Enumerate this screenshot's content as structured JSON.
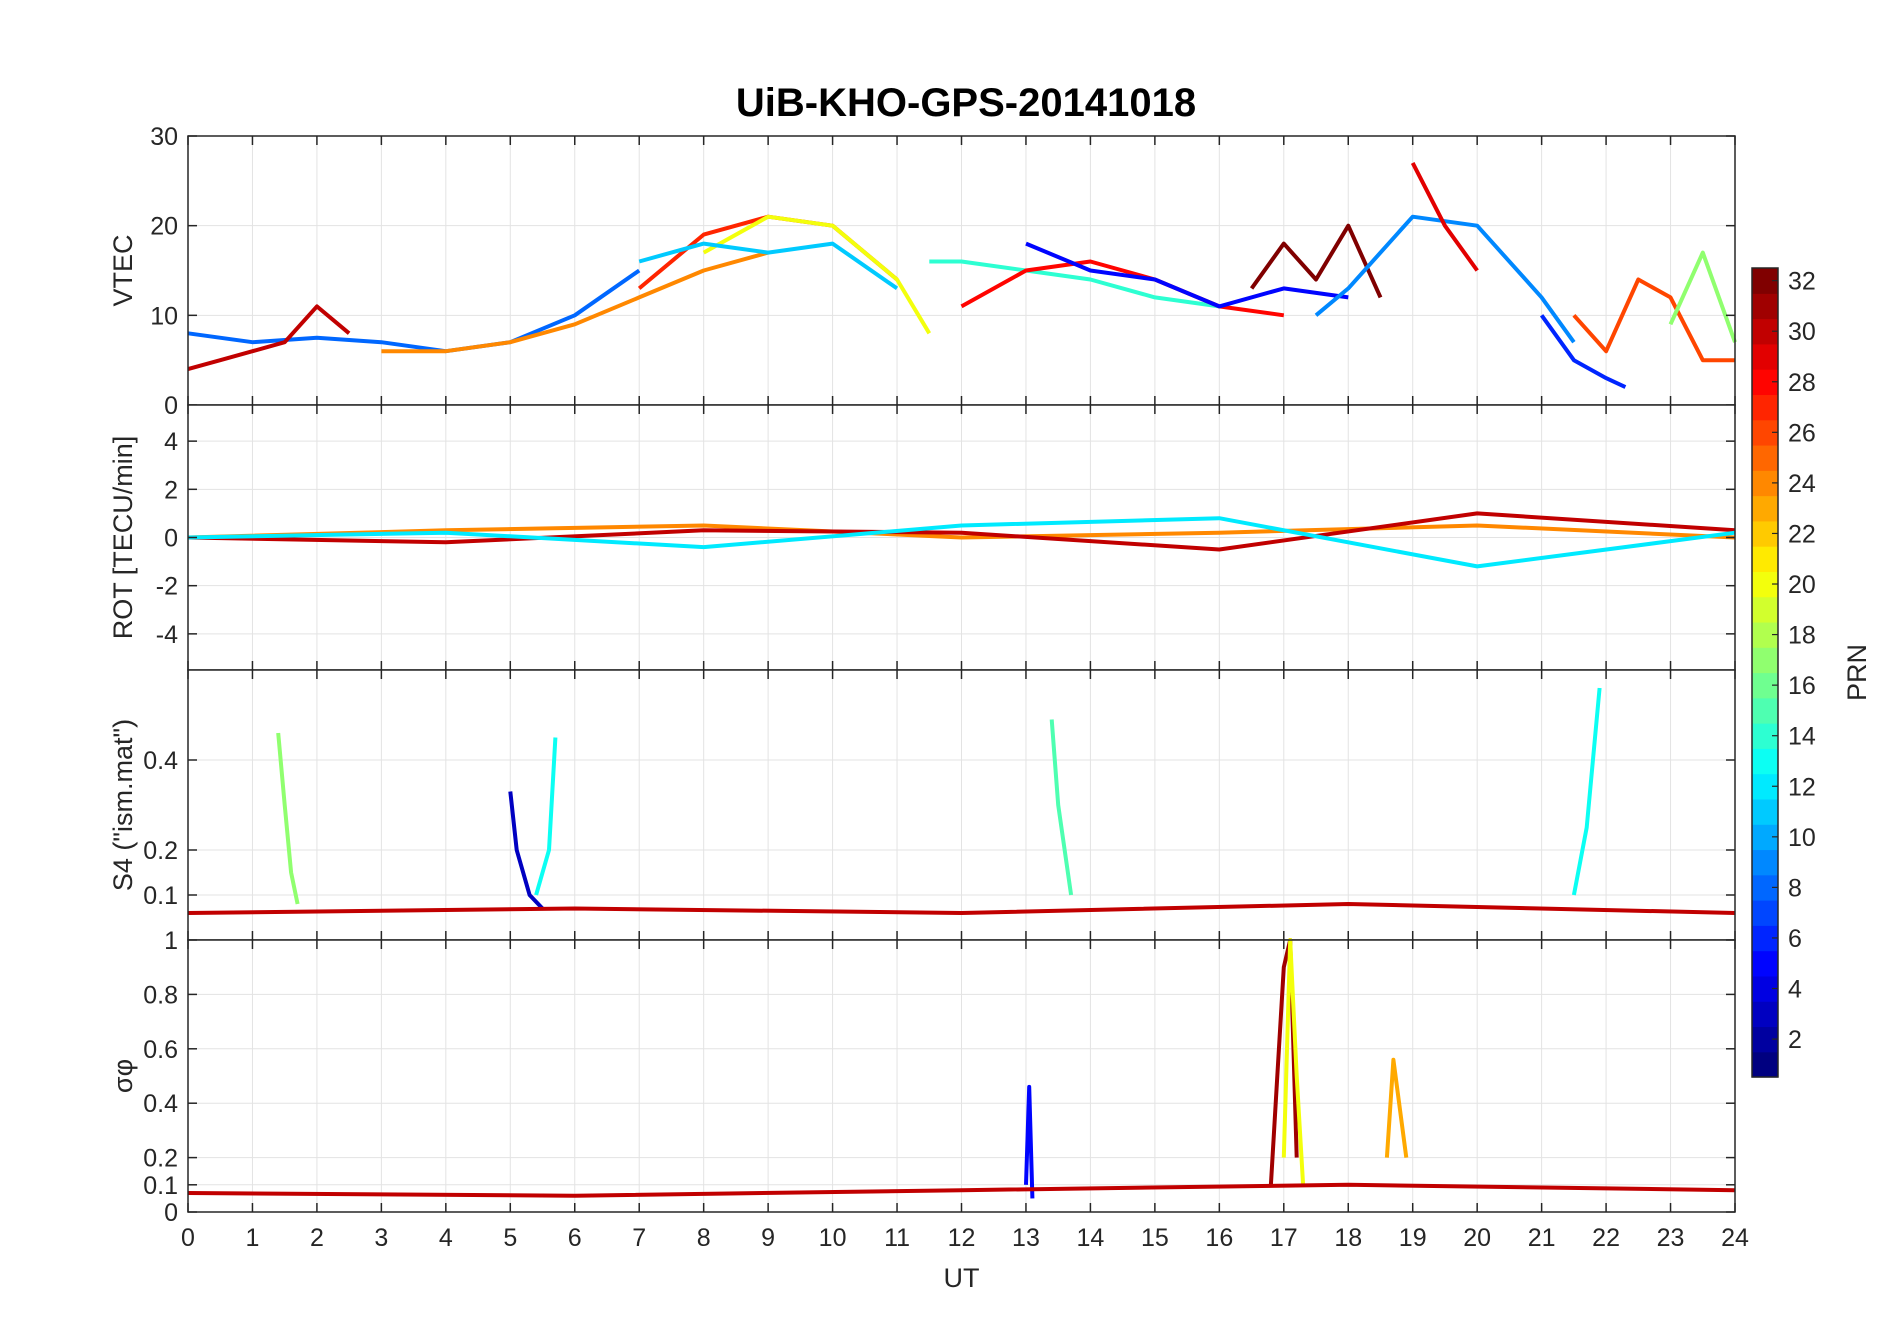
{
  "title": "UiB-KHO-GPS-20141018",
  "chart_data": [
    {
      "type": "line",
      "panel": "vtec",
      "ylabel": "VTEC",
      "ylim": [
        0,
        30
      ],
      "yticks": [
        0,
        10,
        20,
        30
      ],
      "xlim": [
        0,
        24
      ],
      "grid": true,
      "series": [
        {
          "prn": 8,
          "x": [
            0,
            1,
            2,
            3,
            4,
            5,
            6,
            7
          ],
          "values": [
            8,
            7,
            7.5,
            7,
            6,
            7,
            10,
            15
          ]
        },
        {
          "prn": 30,
          "x": [
            0,
            0.5,
            1,
            1.5,
            2,
            2.5
          ],
          "values": [
            4,
            5,
            6,
            7,
            11,
            8
          ]
        },
        {
          "prn": 24,
          "x": [
            3,
            4,
            5,
            6,
            7,
            8,
            9
          ],
          "values": [
            6,
            6,
            7,
            9,
            12,
            15,
            17
          ]
        },
        {
          "prn": 27,
          "x": [
            7,
            8,
            9,
            10,
            11
          ],
          "values": [
            13,
            19,
            21,
            20,
            14
          ]
        },
        {
          "prn": 20,
          "x": [
            8,
            9,
            10,
            11,
            11.5
          ],
          "values": [
            17,
            21,
            20,
            14,
            8
          ]
        },
        {
          "prn": 11,
          "x": [
            7,
            8,
            9,
            10,
            11
          ],
          "values": [
            16,
            18,
            17,
            18,
            13
          ]
        },
        {
          "prn": 14,
          "x": [
            11.5,
            12,
            13,
            14,
            15,
            16
          ],
          "values": [
            16,
            16,
            15,
            14,
            12,
            11
          ]
        },
        {
          "prn": 28,
          "x": [
            12,
            13,
            14,
            15,
            16,
            17
          ],
          "values": [
            11,
            15,
            16,
            14,
            11,
            10
          ]
        },
        {
          "prn": 5,
          "x": [
            13,
            14,
            15,
            16,
            17,
            18
          ],
          "values": [
            18,
            15,
            14,
            11,
            13,
            12
          ]
        },
        {
          "prn": 32,
          "x": [
            16.5,
            17,
            17.5,
            18,
            18.5
          ],
          "values": [
            13,
            18,
            14,
            20,
            12
          ]
        },
        {
          "prn": 9,
          "x": [
            17.5,
            18,
            19,
            20,
            21,
            21.5
          ],
          "values": [
            10,
            13,
            21,
            20,
            12,
            7
          ]
        },
        {
          "prn": 29,
          "x": [
            19,
            19.5,
            20
          ],
          "values": [
            27,
            20,
            15
          ]
        },
        {
          "prn": 6,
          "x": [
            21,
            21.5,
            22,
            22.3
          ],
          "values": [
            10,
            5,
            3,
            2
          ]
        },
        {
          "prn": 26,
          "x": [
            21.5,
            22,
            22.5,
            23,
            23.5,
            24
          ],
          "values": [
            10,
            6,
            14,
            12,
            5,
            5
          ]
        },
        {
          "prn": 17,
          "x": [
            23,
            23.5,
            24
          ],
          "values": [
            9,
            17,
            7
          ]
        }
      ]
    },
    {
      "type": "line",
      "panel": "rot",
      "ylabel": "ROT [TECU/min]",
      "ylim": [
        -5.5,
        5.5
      ],
      "yticks": [
        -4,
        -2,
        0,
        2,
        4
      ],
      "xlim": [
        0,
        24
      ],
      "grid": true,
      "series": [
        {
          "prn": 24,
          "x": [
            0,
            4,
            8,
            12,
            16,
            20,
            24
          ],
          "values": [
            0,
            0.3,
            0.5,
            0,
            0.2,
            0.5,
            0
          ]
        },
        {
          "prn": 30,
          "x": [
            0,
            4,
            8,
            12,
            16,
            20,
            24
          ],
          "values": [
            0,
            -0.2,
            0.3,
            0.2,
            -0.5,
            1,
            0.3
          ]
        },
        {
          "prn": 12,
          "x": [
            0,
            4,
            8,
            12,
            16,
            20,
            24
          ],
          "values": [
            0,
            0.2,
            -0.4,
            0.5,
            0.8,
            -1.2,
            0.2
          ]
        }
      ]
    },
    {
      "type": "line",
      "panel": "s4",
      "ylabel": "S4 (\"ism.mat\")",
      "ylim": [
        0,
        0.6
      ],
      "yticks": [
        0.1,
        0.2,
        0.4
      ],
      "xlim": [
        0,
        24
      ],
      "grid": true,
      "series": [
        {
          "prn": 17,
          "x": [
            1.4,
            1.5,
            1.6,
            1.7
          ],
          "values": [
            0.46,
            0.3,
            0.15,
            0.08
          ]
        },
        {
          "prn": 3,
          "x": [
            5.0,
            5.1,
            5.3,
            5.5
          ],
          "values": [
            0.33,
            0.2,
            0.1,
            0.07
          ]
        },
        {
          "prn": 13,
          "x": [
            5.4,
            5.6,
            5.7
          ],
          "values": [
            0.1,
            0.2,
            0.45
          ]
        },
        {
          "prn": 15,
          "x": [
            13.4,
            13.5,
            13.7
          ],
          "values": [
            0.49,
            0.3,
            0.1
          ]
        },
        {
          "prn": 13,
          "x": [
            21.5,
            21.7,
            21.9
          ],
          "values": [
            0.1,
            0.25,
            0.56
          ]
        },
        {
          "prn": 30,
          "x": [
            0,
            6,
            12,
            18,
            24
          ],
          "values": [
            0.06,
            0.07,
            0.06,
            0.08,
            0.06
          ]
        }
      ]
    },
    {
      "type": "line",
      "panel": "sigma_phi",
      "ylabel": "σφ",
      "ylim": [
        0,
        1
      ],
      "yticks": [
        0,
        0.1,
        0.2,
        0.4,
        0.6,
        0.8,
        1
      ],
      "xlim": [
        0,
        24
      ],
      "xticks": [
        0,
        1,
        2,
        3,
        4,
        5,
        6,
        7,
        8,
        9,
        10,
        11,
        12,
        13,
        14,
        15,
        16,
        17,
        18,
        19,
        20,
        21,
        22,
        23,
        24
      ],
      "xlabel": "UT",
      "grid": true,
      "series": [
        {
          "prn": 31,
          "x": [
            16.8,
            16.9,
            17.0,
            17.1,
            17.2
          ],
          "values": [
            0.1,
            0.5,
            0.9,
            1.0,
            0.2
          ]
        },
        {
          "prn": 20,
          "x": [
            17.0,
            17.1,
            17.2,
            17.3
          ],
          "values": [
            0.2,
            1.0,
            0.5,
            0.1
          ]
        },
        {
          "prn": 5,
          "x": [
            13.0,
            13.05,
            13.1
          ],
          "values": [
            0.1,
            0.46,
            0.05
          ]
        },
        {
          "prn": 23,
          "x": [
            18.6,
            18.7,
            18.9
          ],
          "values": [
            0.2,
            0.56,
            0.2
          ]
        },
        {
          "prn": 30,
          "x": [
            0,
            6,
            12,
            18,
            24
          ],
          "values": [
            0.07,
            0.06,
            0.08,
            0.1,
            0.08
          ]
        }
      ]
    }
  ],
  "colorbar": {
    "label": "PRN",
    "min": 1,
    "max": 32,
    "ticks": [
      2,
      4,
      6,
      8,
      10,
      12,
      14,
      16,
      18,
      20,
      22,
      24,
      26,
      28,
      30,
      32
    ],
    "colormap": "jet"
  }
}
